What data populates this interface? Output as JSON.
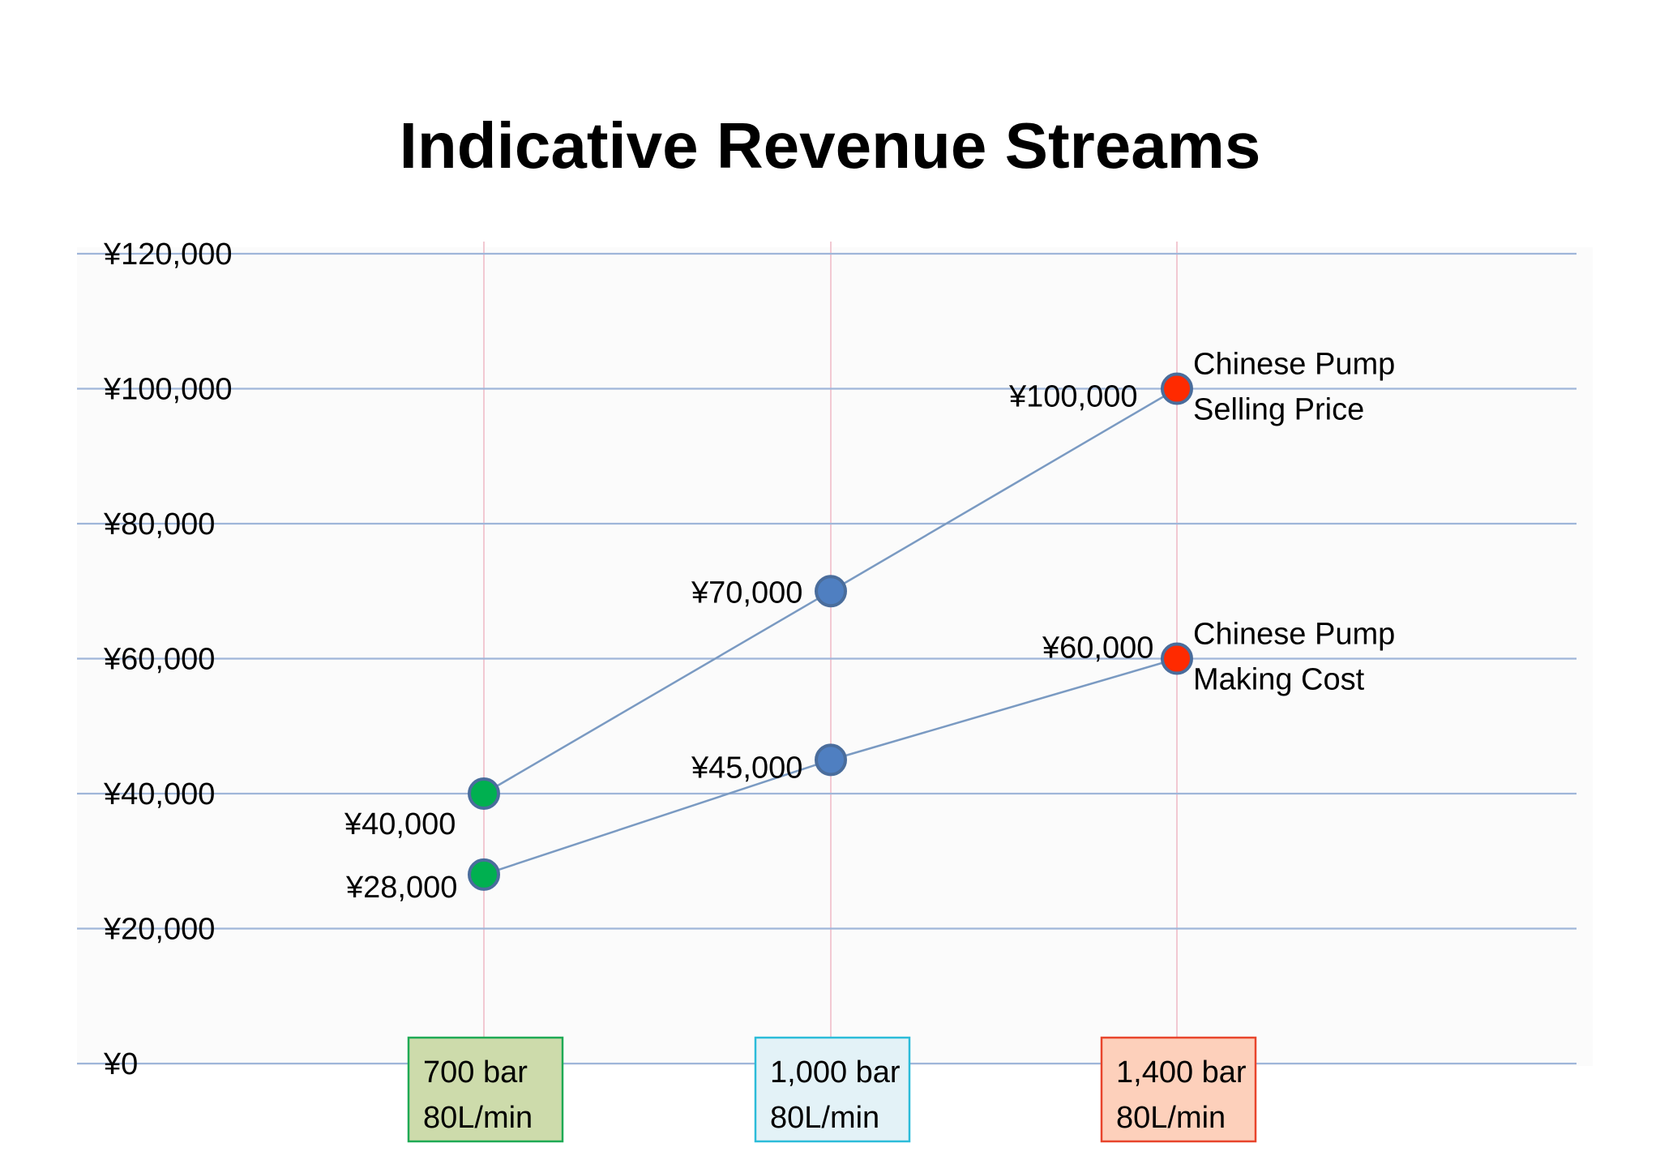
{
  "colors": {
    "line": "#7a9ac2",
    "point_default": "#4f7fc1",
    "point_start": "#00b050",
    "point_end": "#ff2a00",
    "point_stroke": "#4a6d9c",
    "grid_h": "#9fb6d9",
    "grid_v": "#f2c9d2",
    "plot_bg": "#fbfbfb"
  },
  "chart_data": {
    "type": "line",
    "title": "Indicative Revenue Streams",
    "xlabel": "",
    "ylabel": "",
    "ylim": [
      0,
      120000
    ],
    "y_ticks": [
      {
        "value": 0,
        "label": "¥0"
      },
      {
        "value": 20000,
        "label": "¥20,000"
      },
      {
        "value": 40000,
        "label": "¥40,000"
      },
      {
        "value": 60000,
        "label": "¥60,000"
      },
      {
        "value": 80000,
        "label": "¥80,000"
      },
      {
        "value": 100000,
        "label": "¥100,000"
      },
      {
        "value": 120000,
        "label": "¥120,000"
      }
    ],
    "categories": [
      {
        "line1": "700 bar",
        "line2": "80L/min",
        "fill": "#cddbab",
        "border": "#1faa55"
      },
      {
        "line1": "1,000 bar",
        "line2": "80L/min",
        "fill": "#e3f2f7",
        "border": "#2cbcd9"
      },
      {
        "line1": "1,400 bar",
        "line2": "80L/min",
        "fill": "#fdd0bb",
        "border": "#e8452c"
      }
    ],
    "series": [
      {
        "name_lines": [
          "Chinese Pump",
          "Selling Price"
        ],
        "values": [
          40000,
          70000,
          100000
        ],
        "labels": [
          "¥40,000",
          "¥70,000",
          "¥100,000"
        ]
      },
      {
        "name_lines": [
          "Chinese Pump",
          "Making Cost"
        ],
        "values": [
          28000,
          45000,
          60000
        ],
        "labels": [
          "¥28,000",
          "¥45,000",
          "¥60,000"
        ]
      }
    ],
    "grid": true,
    "legend": "inline labels at line ends"
  }
}
